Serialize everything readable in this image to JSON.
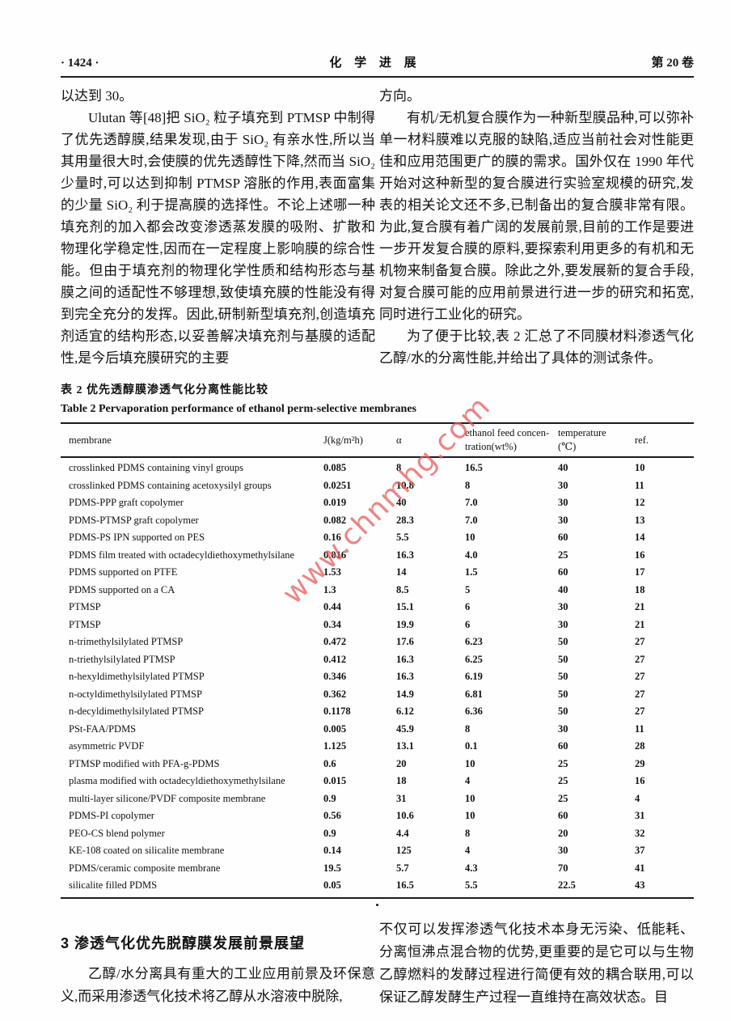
{
  "header": {
    "page_number": "· 1424 ·",
    "journal_title": "化 学 进 展",
    "volume": "第 20 卷"
  },
  "intro": {
    "left": [
      "以达到 30。",
      "Ulutan 等[48]把 SiO₂ 粒子填充到 PTMSP 中制得了优先透醇膜,结果发现,由于 SiO₂ 有亲水性,所以当其用量很大时,会使膜的优先透醇性下降,然而当 SiO₂ 少量时,可以达到抑制 PTMSP 溶胀的作用,表面富集的少量 SiO₂ 利于提高膜的选择性。不论上述哪一种填充剂的加入都会改变渗透蒸发膜的吸附、扩散和物理化学稳定性,因而在一定程度上影响膜的综合性能。但由于填充剂的物理化学性质和结构形态与基膜之间的适配性不够理想,致使填充膜的性能没有得到完全充分的发挥。因此,研制新型填充剂,创造填充剂适宜的结构形态,以妥善解决填充剂与基膜的适配性,是今后填充膜研究的主要"
    ],
    "right": [
      "方向。",
      "有机/无机复合膜作为一种新型膜品种,可以弥补单一材料膜难以克服的缺陷,适应当前社会对性能更佳和应用范围更广的膜的需求。国外仅在 1990 年代开始对这种新型的复合膜进行实验室规模的研究,发表的相关论文还不多,已制备出的复合膜非常有限。为此,复合膜有着广阔的发展前景,目前的工作是要进一步开发复合膜的原料,要探索利用更多的有机和无机物来制备复合膜。除此之外,要发展新的复合手段,对复合膜可能的应用前景进行进一步的研究和拓宽,同时进行工业化的研究。",
      "为了便于比较,表 2 汇总了不同膜材料渗透气化乙醇/水的分离性能,并给出了具体的测试条件。"
    ]
  },
  "table": {
    "caption_zh": "表 2  优先透醇膜渗透气化分离性能比较",
    "caption_en": "Table 2   Pervaporation performance of ethanol perm-selective membranes",
    "headers": [
      "membrane",
      "J(kg/m²h)",
      "α",
      "ethanol feed concen-\ntration(wt%)",
      "temperature\n(℃)",
      "ref."
    ],
    "rows": [
      [
        "crosslinked PDMS containing vinyl groups",
        "0.085",
        "8",
        "16.5",
        "40",
        "10"
      ],
      [
        "crosslinked PDMS containing acetoxysilyl groups",
        "0.0251",
        "10.8",
        "8",
        "30",
        "11"
      ],
      [
        "PDMS-PPP graft copolymer",
        "0.019",
        "40",
        "7.0",
        "30",
        "12"
      ],
      [
        "PDMS-PTMSP graft copolymer",
        "0.082",
        "28.3",
        "7.0",
        "30",
        "13"
      ],
      [
        "PDMS-PS IPN supported on PES",
        "0.16",
        "5.5",
        "10",
        "60",
        "14"
      ],
      [
        "PDMS film treated with octadecyldiethoxymethylsilane",
        "0.016",
        "16.3",
        "4.0",
        "25",
        "16"
      ],
      [
        "PDMS supported on PTFE",
        "1.53",
        "14",
        "1.5",
        "60",
        "17"
      ],
      [
        "PDMS supported on a CA",
        "1.3",
        "8.5",
        "5",
        "40",
        "18"
      ],
      [
        "PTMSP",
        "0.44",
        "15.1",
        "6",
        "30",
        "21"
      ],
      [
        "PTMSP",
        "0.34",
        "19.9",
        "6",
        "30",
        "21"
      ],
      [
        "n-trimethylsilylated PTMSP",
        "0.472",
        "17.6",
        "6.23",
        "50",
        "27"
      ],
      [
        "n-triethylsilylated PTMSP",
        "0.412",
        "16.3",
        "6.25",
        "50",
        "27"
      ],
      [
        "n-hexyldimethylsilylated PTMSP",
        "0.346",
        "16.3",
        "6.19",
        "50",
        "27"
      ],
      [
        "n-octyldimethylsilylated PTMSP",
        "0.362",
        "14.9",
        "6.81",
        "50",
        "27"
      ],
      [
        "n-decyldimethylsilylated PTMSP",
        "0.1178",
        "6.12",
        "6.36",
        "50",
        "27"
      ],
      [
        "PSt-FAA/PDMS",
        "0.005",
        "45.9",
        "8",
        "30",
        "11"
      ],
      [
        "asymmetric PVDF",
        "1.125",
        "13.1",
        "0.1",
        "60",
        "28"
      ],
      [
        "PTMSP modified with PFA-g-PDMS",
        "0.6",
        "20",
        "10",
        "25",
        "29"
      ],
      [
        "plasma modified with octadecyldiethoxymethylsilane",
        "0.015",
        "18",
        "4",
        "25",
        "16"
      ],
      [
        "multi-layer silicone/PVDF composite membrane",
        "0.9",
        "31",
        "10",
        "25",
        "4"
      ],
      [
        "PDMS-PI copolymer",
        "0.56",
        "10.6",
        "10",
        "60",
        "31"
      ],
      [
        "PEO-CS blend polymer",
        "0.9",
        "4.4",
        "8",
        "20",
        "32"
      ],
      [
        "KE-108 coated on silicalite membrane",
        "0.14",
        "125",
        "4",
        "30",
        "37"
      ],
      [
        "PDMS/ceramic composite membrane",
        "19.5",
        "5.7",
        "4.3",
        "70",
        "41"
      ],
      [
        "silicalite filled PDMS",
        "0.05",
        "16.5",
        "5.5",
        "22.5",
        "43"
      ]
    ]
  },
  "watermark": {
    "text": "www.chnmhg.com",
    "color": "#e85c5c"
  },
  "separator_dot": "•",
  "section3": {
    "heading": "3  渗透气化优先脱醇膜发展前景展望",
    "left_paragraph": "乙醇/水分离具有重大的工业应用前景及环保意义,而采用渗透气化技术将乙醇从水溶液中脱除,",
    "right_paragraph": "不仅可以发挥渗透气化技术本身无污染、低能耗、分离恒沸点混合物的优势,更重要的是它可以与生物乙醇燃料的发酵过程进行简便有效的耦合联用,可以保证乙醇发酵生产过程一直维持在高效状态。目"
  }
}
